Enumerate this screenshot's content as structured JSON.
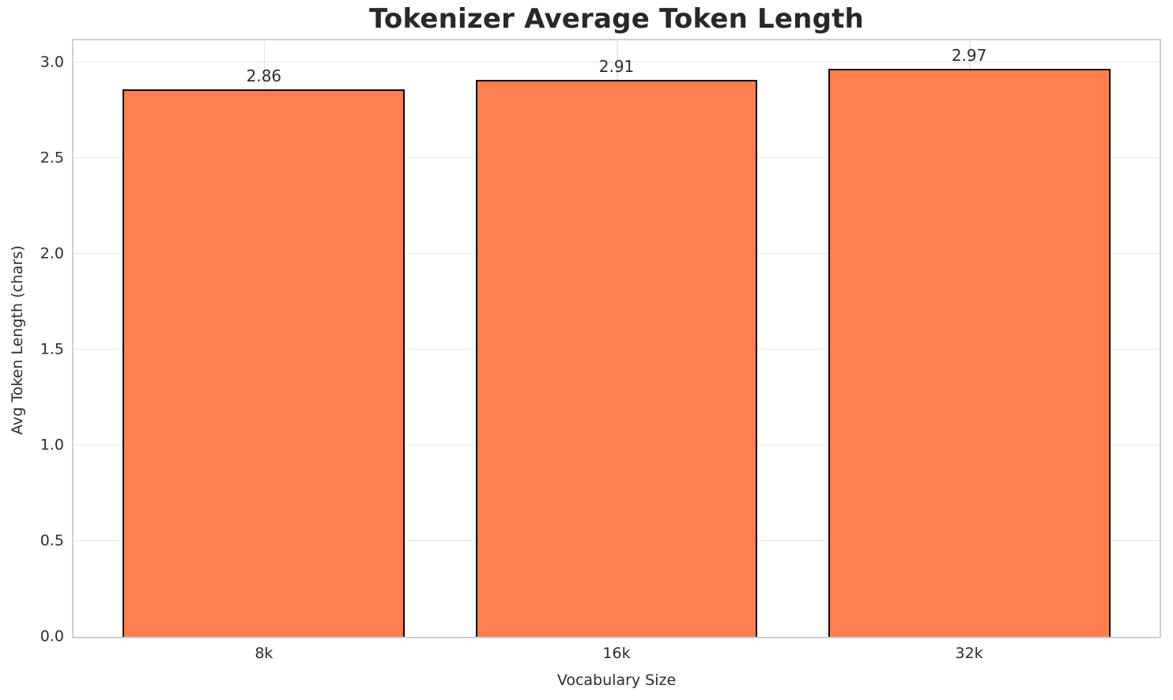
{
  "figure": {
    "background_color": "#ffffff"
  },
  "chart_data": {
    "type": "bar",
    "title": "Tokenizer Average Token Length",
    "xlabel": "Vocabulary Size",
    "ylabel": "Avg Token Length (chars)",
    "categories": [
      "8k",
      "16k",
      "32k"
    ],
    "values": [
      2.86,
      2.91,
      2.97
    ],
    "value_labels": [
      "2.86",
      "2.91",
      "2.97"
    ],
    "yticks": [
      0.0,
      0.5,
      1.0,
      1.5,
      2.0,
      2.5,
      3.0
    ],
    "ytick_labels": [
      "0.0",
      "0.5",
      "1.0",
      "1.5",
      "2.0",
      "2.5",
      "3.0"
    ],
    "ylim": [
      0,
      3.117
    ],
    "xlim": [
      -0.54,
      2.54
    ],
    "bar_width_units": 0.8,
    "grid": true,
    "legend_position": "none",
    "colors": {
      "bar_fill": "#ff7f50",
      "bar_edge": "#000000",
      "grid_line": "#e7e7e7",
      "spine": "#cfcfcf",
      "text": "#2d2d2d",
      "title_text": "#282828"
    }
  }
}
